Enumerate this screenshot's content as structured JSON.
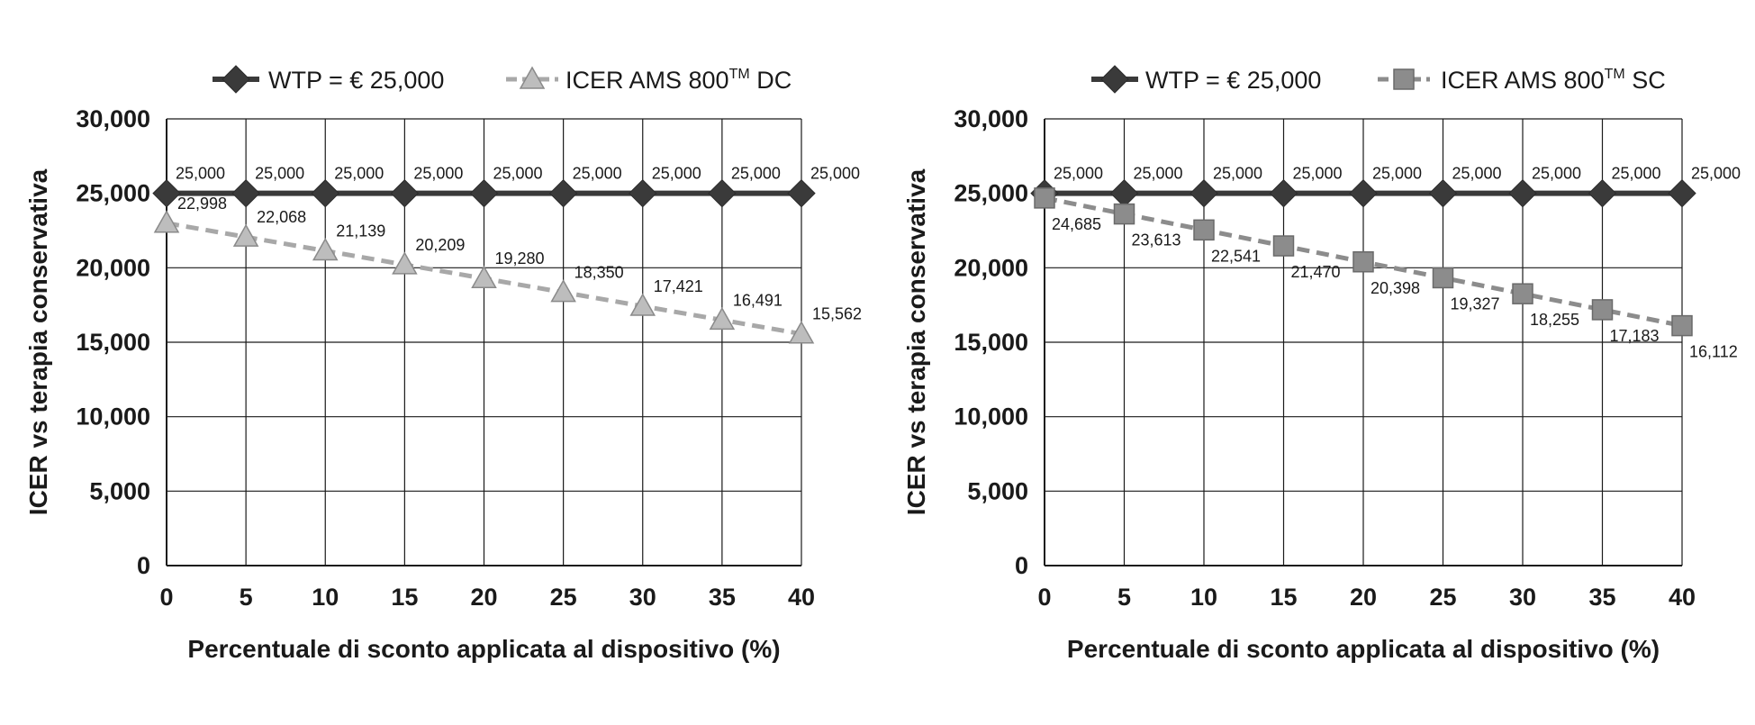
{
  "chart_data": [
    {
      "type": "line",
      "x": [
        0,
        5,
        10,
        15,
        20,
        25,
        30,
        35,
        40
      ],
      "xlabel": "Percentuale di sconto applicata al dispositivo (%)",
      "ylabel": "ICER vs terapia conservativa",
      "xlim": [
        0,
        40
      ],
      "ylim": [
        0,
        30000
      ],
      "x_ticks": [
        "0",
        "5",
        "10",
        "15",
        "20",
        "25",
        "30",
        "35",
        "40"
      ],
      "y_ticks": [
        "0",
        "5,000",
        "10,000",
        "15,000",
        "20,000",
        "25,000",
        "30,000"
      ],
      "grid": true,
      "legend": "top",
      "series": [
        {
          "name": "WTP = € 25,000",
          "marker": "diamond",
          "color": "#3a3a3a",
          "style": "solid",
          "values": [
            25000,
            25000,
            25000,
            25000,
            25000,
            25000,
            25000,
            25000,
            25000
          ],
          "labels": [
            "25,000",
            "25,000",
            "25,000",
            "25,000",
            "25,000",
            "25,000",
            "25,000",
            "25,000",
            "25,000"
          ]
        },
        {
          "name_main": "ICER AMS 800",
          "name_sup": "TM",
          "name_suffix": " DC",
          "marker": "triangle",
          "color": "#bdbdbd",
          "line_color": "#a8a8a8",
          "style": "dashed",
          "values": [
            22998,
            22068,
            21139,
            20209,
            19280,
            18350,
            17421,
            16491,
            15562
          ],
          "labels": [
            "22,998",
            "22,068",
            "21,139",
            "20,209",
            "19,280",
            "18,350",
            "17,421",
            "16,491",
            "15,562"
          ]
        }
      ]
    },
    {
      "type": "line",
      "x": [
        0,
        5,
        10,
        15,
        20,
        25,
        30,
        35,
        40
      ],
      "xlabel": "Percentuale di sconto applicata al dispositivo (%)",
      "ylabel": "ICER vs terapia conservativa",
      "xlim": [
        0,
        40
      ],
      "ylim": [
        0,
        30000
      ],
      "x_ticks": [
        "0",
        "5",
        "10",
        "15",
        "20",
        "25",
        "30",
        "35",
        "40"
      ],
      "y_ticks": [
        "0",
        "5,000",
        "10,000",
        "15,000",
        "20,000",
        "25,000",
        "30,000"
      ],
      "grid": true,
      "legend": "top",
      "series": [
        {
          "name": "WTP = € 25,000",
          "marker": "diamond",
          "color": "#3a3a3a",
          "style": "solid",
          "values": [
            25000,
            25000,
            25000,
            25000,
            25000,
            25000,
            25000,
            25000,
            25000
          ],
          "labels": [
            "25,000",
            "25,000",
            "25,000",
            "25,000",
            "25,000",
            "25,000",
            "25,000",
            "25,000",
            "25,000"
          ]
        },
        {
          "name_main": "ICER AMS 800",
          "name_sup": "TM",
          "name_suffix": " SC",
          "marker": "square",
          "color": "#8c8c8c",
          "line_color": "#8c8c8c",
          "style": "dashed",
          "values": [
            24685,
            23613,
            22541,
            21470,
            20398,
            19327,
            18255,
            17183,
            16112
          ],
          "labels": [
            "24,685",
            "23,613",
            "22,541",
            "21,470",
            "20,398",
            "19,327",
            "18,255",
            "17,183",
            "16,112"
          ]
        }
      ]
    }
  ]
}
